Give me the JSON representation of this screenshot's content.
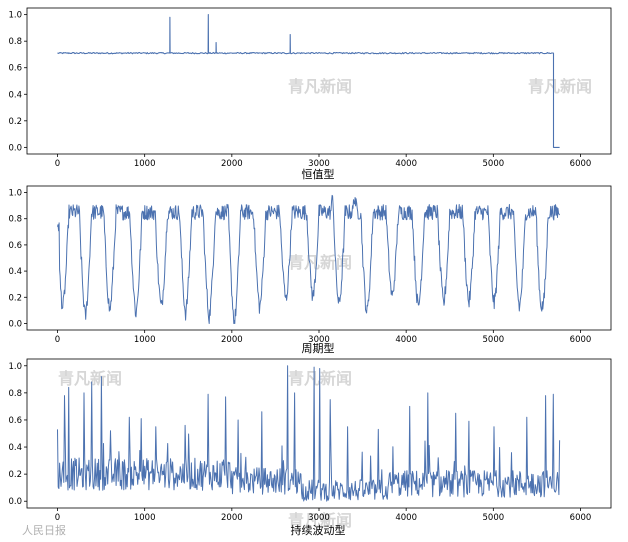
{
  "watermark": {
    "brand": "青凡新闻",
    "credit": "人民日报"
  },
  "chart_data": [
    {
      "type": "line",
      "xlabel": "恒值型",
      "xlim": [
        -350,
        6350
      ],
      "ylim": [
        -0.05,
        1.05
      ],
      "xticks": [
        0,
        1000,
        2000,
        3000,
        4000,
        5000,
        6000
      ],
      "yticks": [
        0.0,
        0.2,
        0.4,
        0.6,
        0.8,
        1.0
      ],
      "xtick_labels": [
        "0",
        "1000",
        "2000",
        "3000",
        "4000",
        "5000",
        "6000"
      ],
      "ytick_labels": [
        "0.0",
        "0.2",
        "0.4",
        "0.6",
        "0.8",
        "1.0"
      ],
      "grid": false,
      "color": "#4c72b0",
      "series": [
        {
          "baseline": 0.71,
          "x_start": 0,
          "x_end": 5690,
          "spikes": [
            {
              "x": 1290,
              "y": 0.98
            },
            {
              "x": 1730,
              "y": 1.0
            },
            {
              "x": 1820,
              "y": 0.79
            },
            {
              "x": 2670,
              "y": 0.85
            }
          ],
          "drop": {
            "x": 5690,
            "y": 0.0,
            "end_x": 5760
          }
        }
      ]
    },
    {
      "type": "line",
      "xlabel": "周期型",
      "xlim": [
        -350,
        6350
      ],
      "ylim": [
        -0.05,
        1.05
      ],
      "xticks": [
        0,
        1000,
        2000,
        3000,
        4000,
        5000,
        6000
      ],
      "yticks": [
        0.0,
        0.2,
        0.4,
        0.6,
        0.8,
        1.0
      ],
      "xtick_labels": [
        "0",
        "1000",
        "2000",
        "3000",
        "4000",
        "5000",
        "6000"
      ],
      "ytick_labels": [
        "0.0",
        "0.2",
        "0.4",
        "0.6",
        "0.8",
        "1.0"
      ],
      "grid": false,
      "color": "#4c72b0",
      "series": [
        {
          "x_start": 0,
          "x_end": 5760,
          "high": 0.85,
          "troughs": [
            {
              "x": 60,
              "y": 0.12
            },
            {
              "x": 320,
              "y": 0.05
            },
            {
              "x": 600,
              "y": 0.1
            },
            {
              "x": 900,
              "y": 0.08
            },
            {
              "x": 1190,
              "y": 0.12
            },
            {
              "x": 1470,
              "y": 0.08
            },
            {
              "x": 1740,
              "y": 0.05
            },
            {
              "x": 2030,
              "y": 0.01
            },
            {
              "x": 2320,
              "y": 0.12
            },
            {
              "x": 2620,
              "y": 0.18
            },
            {
              "x": 2930,
              "y": 0.2
            },
            {
              "x": 3230,
              "y": 0.14
            },
            {
              "x": 3550,
              "y": 0.08
            },
            {
              "x": 3840,
              "y": 0.2
            },
            {
              "x": 4140,
              "y": 0.12
            },
            {
              "x": 4430,
              "y": 0.15
            },
            {
              "x": 4720,
              "y": 0.16
            },
            {
              "x": 5010,
              "y": 0.15
            },
            {
              "x": 5300,
              "y": 0.12
            },
            {
              "x": 5560,
              "y": 0.03
            }
          ],
          "peaks": [
            {
              "x": 3160,
              "y": 0.99
            },
            {
              "x": 3410,
              "y": 0.98
            },
            {
              "x": 5560,
              "y": 0.96
            }
          ]
        }
      ]
    },
    {
      "type": "line",
      "xlabel": "持续波动型",
      "xlim": [
        -350,
        6350
      ],
      "ylim": [
        -0.05,
        1.05
      ],
      "xticks": [
        0,
        1000,
        2000,
        3000,
        4000,
        5000,
        6000
      ],
      "yticks": [
        0.0,
        0.2,
        0.4,
        0.6,
        0.8,
        1.0
      ],
      "xtick_labels": [
        "0",
        "1000",
        "2000",
        "3000",
        "4000",
        "5000",
        "6000"
      ],
      "ytick_labels": [
        "0.0",
        "0.2",
        "0.4",
        "0.6",
        "0.8",
        "1.0"
      ],
      "grid": false,
      "color": "#4c72b0",
      "series": [
        {
          "x_start": 0,
          "x_end": 5760,
          "base_segments": [
            {
              "x0": 0,
              "x1": 2000,
              "mean": 0.2,
              "amp": 0.12
            },
            {
              "x0": 2000,
              "x1": 2800,
              "mean": 0.15,
              "amp": 0.1
            },
            {
              "x0": 2800,
              "x1": 3800,
              "mean": 0.08,
              "amp": 0.08
            },
            {
              "x0": 3800,
              "x1": 5760,
              "mean": 0.13,
              "amp": 0.1
            }
          ],
          "spikes": [
            {
              "x": 0,
              "y": 0.53
            },
            {
              "x": 80,
              "y": 0.78
            },
            {
              "x": 130,
              "y": 0.84
            },
            {
              "x": 300,
              "y": 0.8
            },
            {
              "x": 390,
              "y": 0.88
            },
            {
              "x": 500,
              "y": 0.92
            },
            {
              "x": 610,
              "y": 0.52
            },
            {
              "x": 820,
              "y": 0.62
            },
            {
              "x": 960,
              "y": 0.61
            },
            {
              "x": 1130,
              "y": 0.55
            },
            {
              "x": 1460,
              "y": 0.56
            },
            {
              "x": 1730,
              "y": 0.79
            },
            {
              "x": 1930,
              "y": 0.77
            },
            {
              "x": 2070,
              "y": 0.6
            },
            {
              "x": 2340,
              "y": 0.66
            },
            {
              "x": 2640,
              "y": 1.0
            },
            {
              "x": 2720,
              "y": 0.8
            },
            {
              "x": 2940,
              "y": 0.99
            },
            {
              "x": 3010,
              "y": 0.98
            },
            {
              "x": 3130,
              "y": 0.75
            },
            {
              "x": 3330,
              "y": 0.55
            },
            {
              "x": 3680,
              "y": 0.53
            },
            {
              "x": 4040,
              "y": 0.7
            },
            {
              "x": 4250,
              "y": 0.8
            },
            {
              "x": 4570,
              "y": 0.65
            },
            {
              "x": 4720,
              "y": 0.59
            },
            {
              "x": 5010,
              "y": 0.55
            },
            {
              "x": 5380,
              "y": 0.62
            },
            {
              "x": 5600,
              "y": 0.78
            },
            {
              "x": 5690,
              "y": 0.79
            },
            {
              "x": 5760,
              "y": 0.45
            }
          ]
        }
      ]
    }
  ]
}
